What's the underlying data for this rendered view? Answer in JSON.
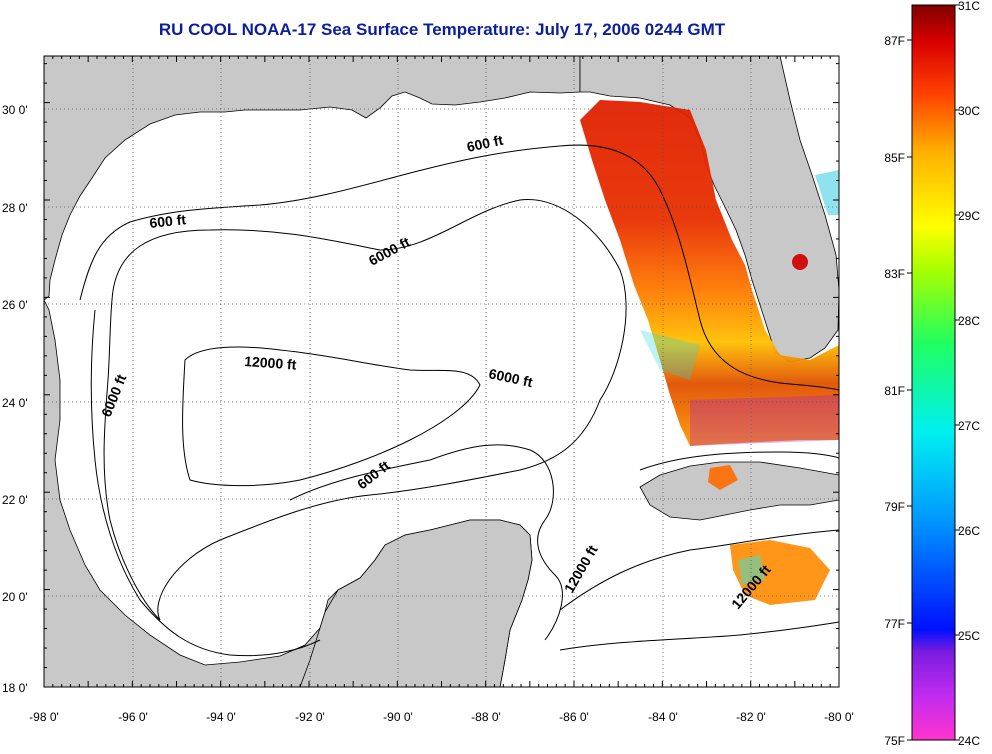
{
  "title": "RU COOL  NOAA-17  Sea Surface Temperature:  July 17, 2006 0244 GMT",
  "map": {
    "lon_labels": [
      "-98 0'",
      "-96 0'",
      "-94 0'",
      "-92 0'",
      "-90 0'",
      "-88 0'",
      "-86 0'",
      "-84 0'",
      "-82 0'",
      "-80 0'"
    ],
    "lat_labels": [
      "30 0'",
      "28 0'",
      "26 0'",
      "24 0'",
      "22 0'",
      "20 0'",
      "18 0'"
    ],
    "contour_labels": [
      "600 ft",
      "600 ft",
      "6000 ft",
      "12000 ft",
      "6000 ft",
      "6000 ft",
      "600 ft",
      "12000 ft",
      "12000 ft"
    ],
    "land_color": "#c8c8c8",
    "water_color": "#ffffff"
  },
  "colorbar": {
    "c_labels": [
      "31C",
      "30C",
      "29C",
      "28C",
      "27C",
      "26C",
      "25C",
      "24C"
    ],
    "f_labels": [
      "87F",
      "85F",
      "83F",
      "81F",
      "79F",
      "77F",
      "75F"
    ]
  }
}
